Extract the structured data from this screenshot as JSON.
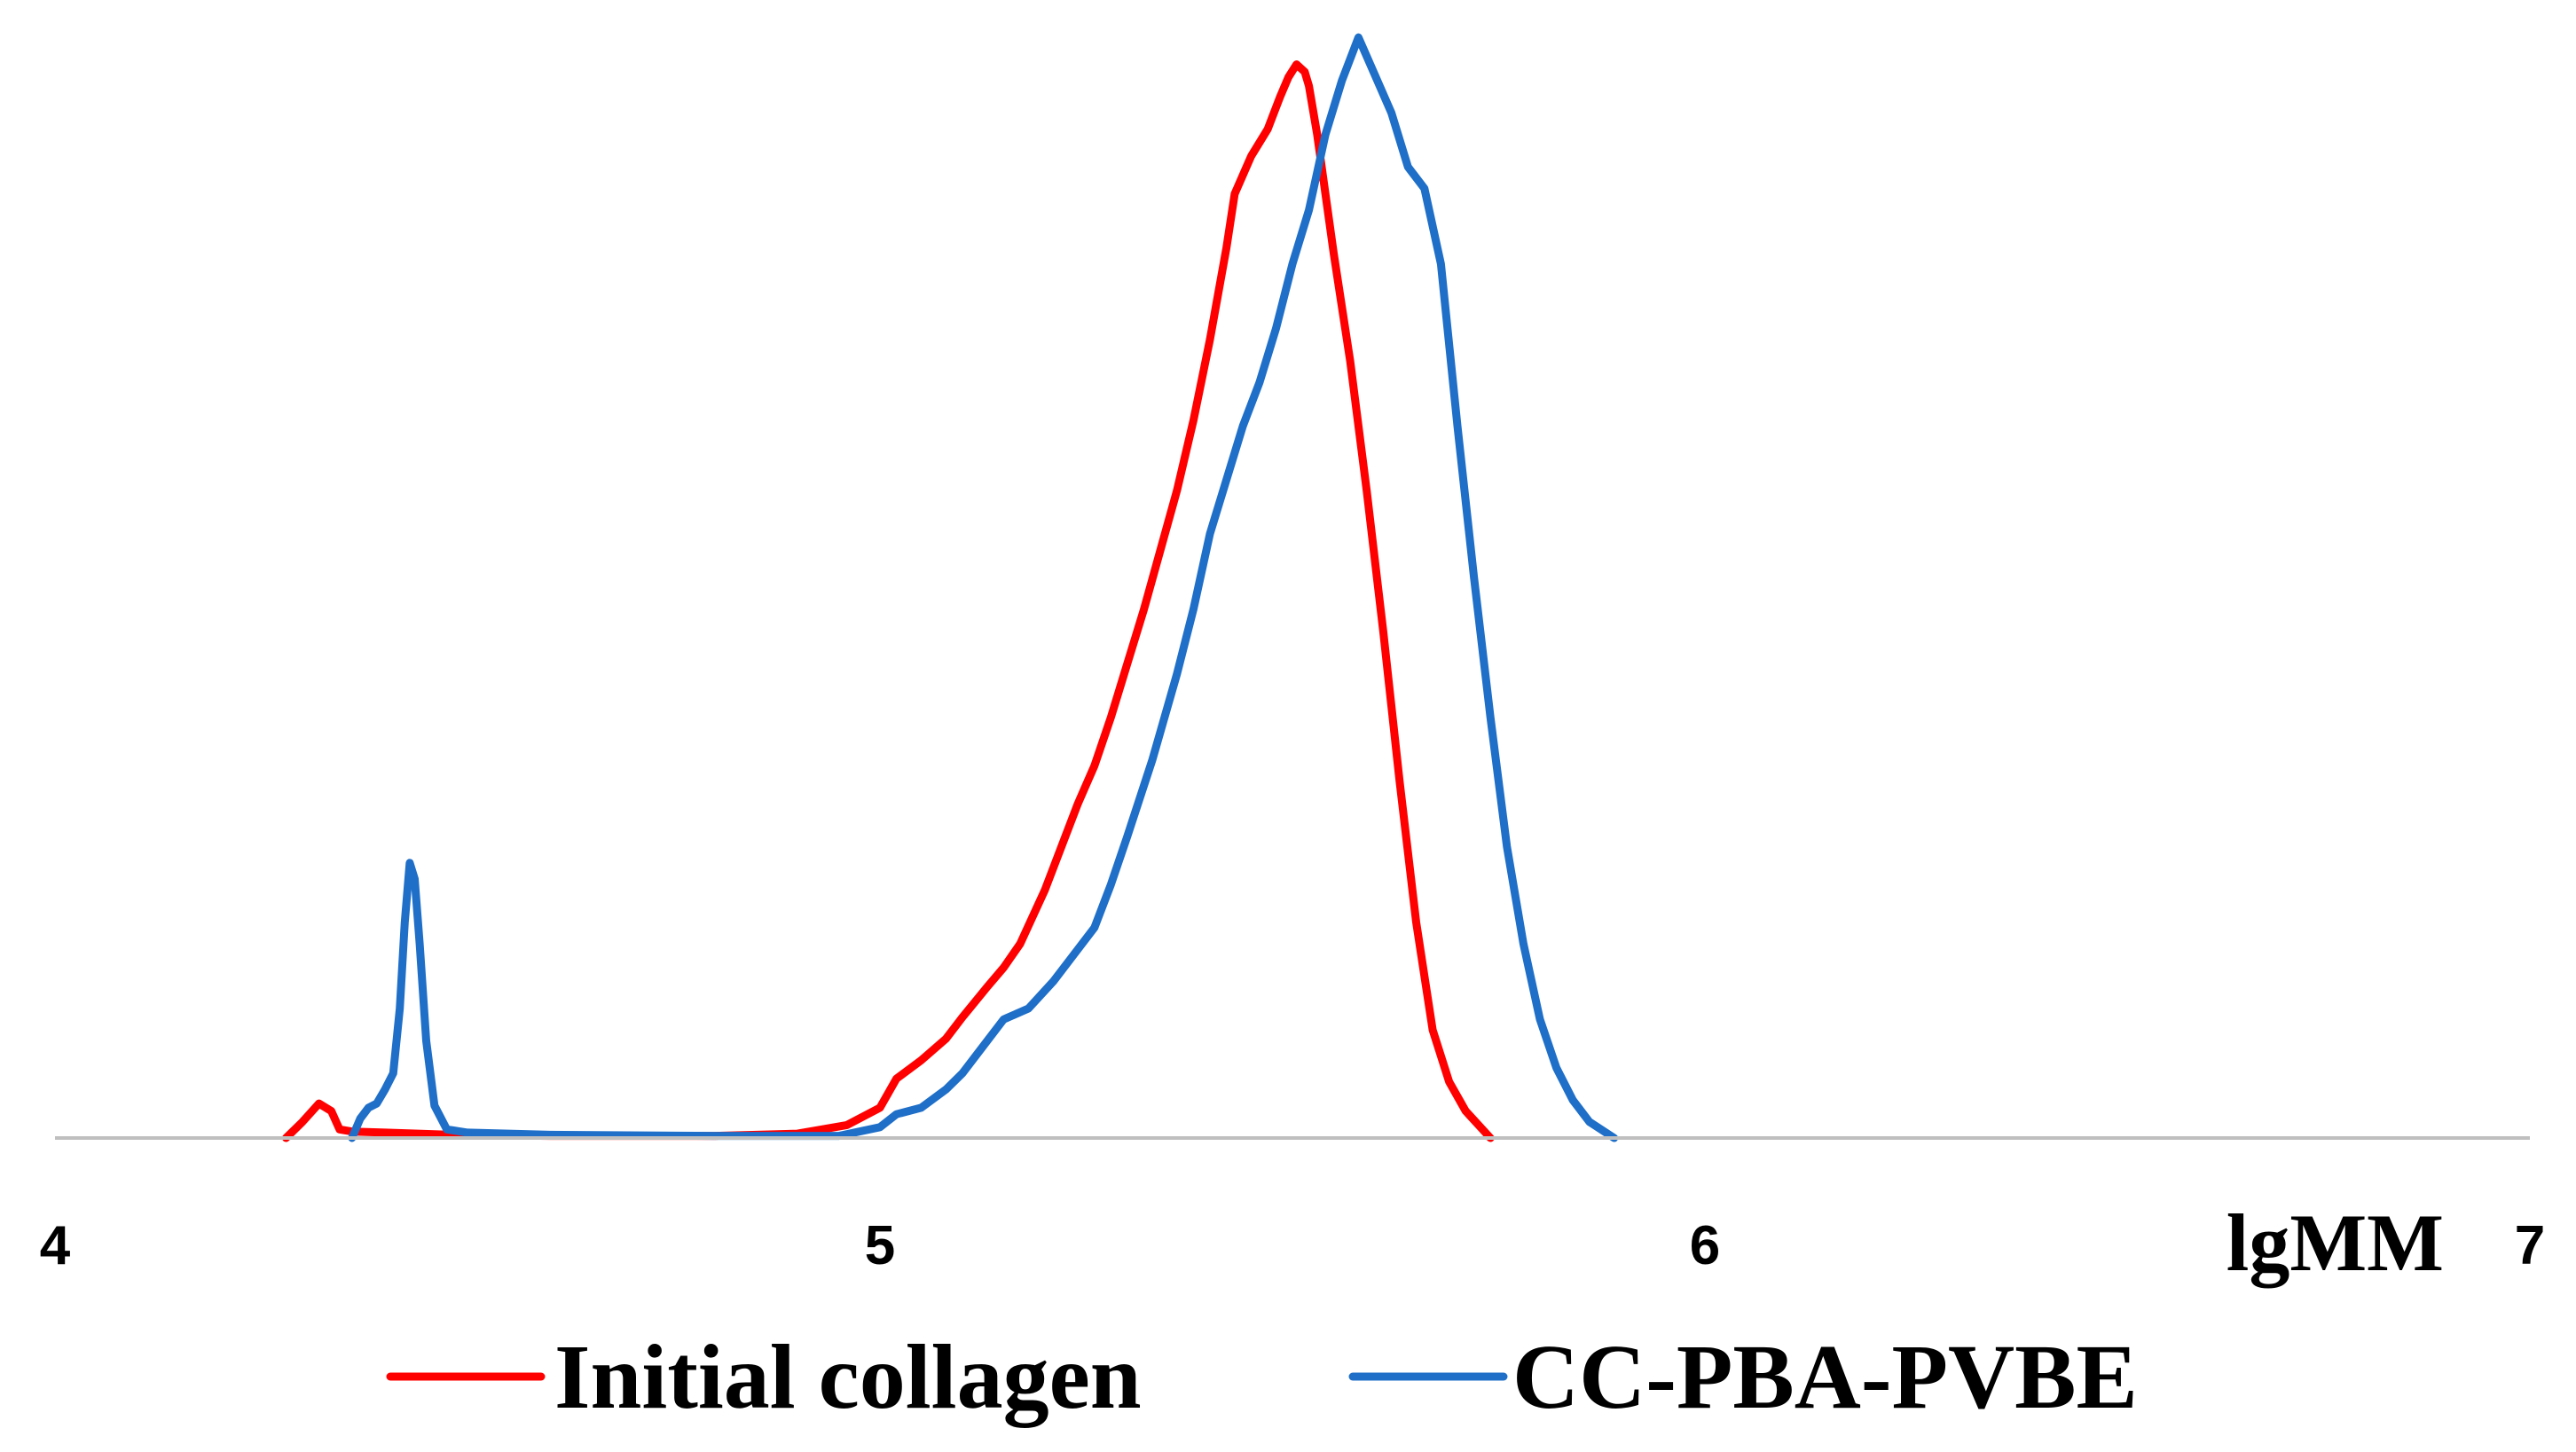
{
  "chart_data": {
    "type": "line",
    "title": "",
    "xlabel": "lgMM",
    "ylabel": "",
    "xlim": [
      4,
      7
    ],
    "ylim": [
      0,
      1.03
    ],
    "x_ticks": [
      4,
      5,
      6,
      7
    ],
    "x_tick_labels": [
      "4",
      "5",
      "6",
      "7"
    ],
    "grid": false,
    "legend_position": "bottom",
    "series": [
      {
        "name": "Initial collagen",
        "color": "#FF0000",
        "points": [
          [
            4.28,
            0.0
          ],
          [
            4.3,
            0.015
          ],
          [
            4.32,
            0.032
          ],
          [
            4.335,
            0.025
          ],
          [
            4.345,
            0.008
          ],
          [
            4.36,
            0.006
          ],
          [
            4.4,
            0.005
          ],
          [
            4.48,
            0.003
          ],
          [
            4.6,
            0.002
          ],
          [
            4.8,
            0.002
          ],
          [
            4.9,
            0.004
          ],
          [
            4.96,
            0.012
          ],
          [
            5.0,
            0.028
          ],
          [
            5.02,
            0.055
          ],
          [
            5.05,
            0.072
          ],
          [
            5.08,
            0.092
          ],
          [
            5.1,
            0.112
          ],
          [
            5.13,
            0.14
          ],
          [
            5.15,
            0.158
          ],
          [
            5.17,
            0.18
          ],
          [
            5.2,
            0.23
          ],
          [
            5.22,
            0.27
          ],
          [
            5.24,
            0.31
          ],
          [
            5.26,
            0.345
          ],
          [
            5.28,
            0.39
          ],
          [
            5.3,
            0.44
          ],
          [
            5.32,
            0.49
          ],
          [
            5.34,
            0.545
          ],
          [
            5.36,
            0.6
          ],
          [
            5.38,
            0.665
          ],
          [
            5.4,
            0.74
          ],
          [
            5.42,
            0.825
          ],
          [
            5.43,
            0.875
          ],
          [
            5.45,
            0.91
          ],
          [
            5.47,
            0.935
          ],
          [
            5.485,
            0.965
          ],
          [
            5.495,
            0.983
          ],
          [
            5.505,
            0.995
          ],
          [
            5.515,
            0.988
          ],
          [
            5.52,
            0.975
          ],
          [
            5.53,
            0.93
          ],
          [
            5.55,
            0.82
          ],
          [
            5.57,
            0.72
          ],
          [
            5.59,
            0.6
          ],
          [
            5.61,
            0.47
          ],
          [
            5.63,
            0.33
          ],
          [
            5.65,
            0.2
          ],
          [
            5.67,
            0.1
          ],
          [
            5.69,
            0.052
          ],
          [
            5.71,
            0.025
          ],
          [
            5.74,
            0.0
          ]
        ]
      },
      {
        "name": "CC-PBA-PVBE",
        "color": "#1F6FC8",
        "points": [
          [
            4.36,
            0.0
          ],
          [
            4.37,
            0.018
          ],
          [
            4.38,
            0.028
          ],
          [
            4.39,
            0.032
          ],
          [
            4.4,
            0.045
          ],
          [
            4.41,
            0.06
          ],
          [
            4.418,
            0.12
          ],
          [
            4.424,
            0.2
          ],
          [
            4.43,
            0.255
          ],
          [
            4.436,
            0.24
          ],
          [
            4.442,
            0.18
          ],
          [
            4.45,
            0.09
          ],
          [
            4.46,
            0.03
          ],
          [
            4.475,
            0.008
          ],
          [
            4.5,
            0.005
          ],
          [
            4.6,
            0.003
          ],
          [
            4.8,
            0.002
          ],
          [
            4.95,
            0.002
          ],
          [
            5.0,
            0.01
          ],
          [
            5.02,
            0.022
          ],
          [
            5.05,
            0.028
          ],
          [
            5.08,
            0.045
          ],
          [
            5.1,
            0.06
          ],
          [
            5.13,
            0.09
          ],
          [
            5.15,
            0.11
          ],
          [
            5.18,
            0.12
          ],
          [
            5.21,
            0.145
          ],
          [
            5.23,
            0.165
          ],
          [
            5.26,
            0.195
          ],
          [
            5.28,
            0.235
          ],
          [
            5.3,
            0.28
          ],
          [
            5.33,
            0.35
          ],
          [
            5.36,
            0.43
          ],
          [
            5.38,
            0.49
          ],
          [
            5.4,
            0.56
          ],
          [
            5.42,
            0.61
          ],
          [
            5.44,
            0.66
          ],
          [
            5.46,
            0.7
          ],
          [
            5.48,
            0.75
          ],
          [
            5.5,
            0.81
          ],
          [
            5.52,
            0.86
          ],
          [
            5.54,
            0.93
          ],
          [
            5.56,
            0.98
          ],
          [
            5.58,
            1.02
          ],
          [
            5.6,
            0.985
          ],
          [
            5.62,
            0.95
          ],
          [
            5.64,
            0.9
          ],
          [
            5.66,
            0.88
          ],
          [
            5.68,
            0.81
          ],
          [
            5.7,
            0.66
          ],
          [
            5.72,
            0.52
          ],
          [
            5.74,
            0.39
          ],
          [
            5.76,
            0.27
          ],
          [
            5.78,
            0.18
          ],
          [
            5.8,
            0.11
          ],
          [
            5.82,
            0.065
          ],
          [
            5.84,
            0.035
          ],
          [
            5.86,
            0.015
          ],
          [
            5.89,
            0.0
          ]
        ]
      }
    ]
  }
}
